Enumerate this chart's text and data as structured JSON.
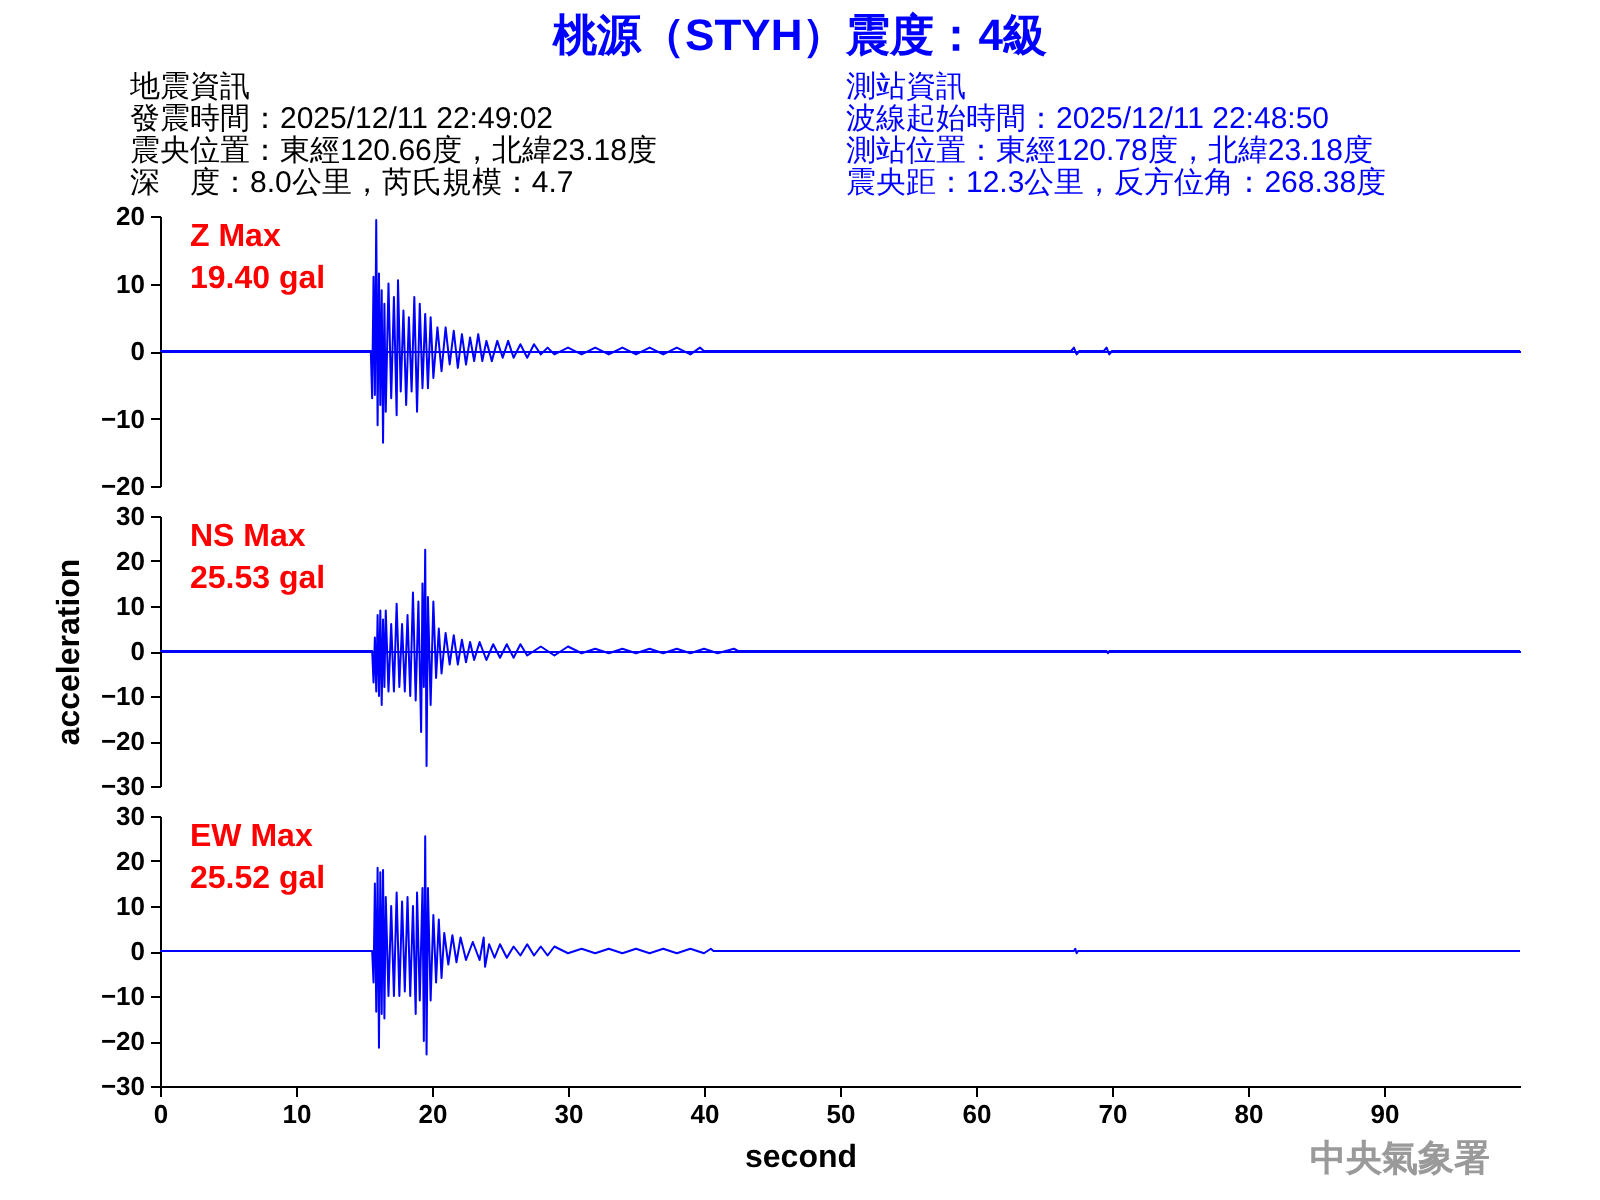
{
  "chart_data": [
    {
      "type": "other",
      "title": "桃源（STYH）震度：4級",
      "annotations": [
        "地震資訊",
        "發震時間：2025/12/11 22:49:02",
        "震央位置：東經120.66度，北緯23.18度",
        "深　度：8.0公里，芮氏規模：4.7",
        "測站資訊",
        "波線起始時間：2025/12/11 22:48:50",
        "測站位置：東經120.78度，北緯23.18度",
        "震央距：12.3公里，反方位角：268.38度"
      ]
    },
    {
      "type": "line",
      "x": [
        0,
        15.5,
        15.6,
        15.7,
        15.8,
        15.9,
        16.0,
        16.1,
        16.2,
        16.3,
        16.4,
        16.5,
        16.6,
        16.8,
        17.0,
        17.2,
        17.4,
        17.5,
        17.7,
        17.9,
        18.1,
        18.3,
        18.5,
        18.7,
        18.9,
        19.1,
        19.3,
        19.5,
        19.7,
        19.9,
        20.1,
        20.4,
        20.7,
        21.0,
        21.3,
        21.6,
        21.9,
        22.2,
        22.5,
        22.8,
        23.1,
        23.4,
        23.7,
        24.0,
        24.4,
        24.8,
        25.2,
        25.6,
        26.0,
        26.5,
        27.0,
        27.5,
        28.0,
        28.5,
        29.0,
        30.0,
        31.0,
        32.0,
        33.0,
        34.0,
        35.0,
        36.0,
        37.0,
        38.0,
        39.0,
        39.7,
        40.0,
        67.0,
        67.2,
        67.4,
        67.6,
        69.4,
        69.6,
        69.8,
        70.0,
        100
      ],
      "series": [
        {
          "color": "#0000ff",
          "values": [
            0,
            0,
            -7,
            11,
            -6.5,
            19.4,
            -11,
            11.5,
            -8,
            9,
            -13.6,
            7,
            -9,
            10,
            -7,
            8,
            -9.5,
            10.5,
            -6,
            6,
            -8,
            5,
            -6,
            8,
            -9,
            7,
            -5.5,
            5.5,
            -5.5,
            5,
            -4,
            3.5,
            -3,
            3.5,
            -2,
            3,
            -2.5,
            2.5,
            -2,
            2,
            -1.5,
            2.5,
            -1.5,
            1.5,
            -1.5,
            1.5,
            -1,
            1.5,
            -1,
            1,
            -1,
            1,
            -0.5,
            0.5,
            -0.5,
            0.5,
            -0.5,
            0.5,
            -0.5,
            0.5,
            -0.5,
            0.5,
            -0.5,
            0.5,
            -0.5,
            0.5,
            0,
            0,
            0.5,
            -0.5,
            0,
            0,
            0.5,
            -0.5,
            0,
            0
          ]
        }
      ],
      "xlim": [
        0,
        100
      ],
      "ylim": [
        -20,
        20
      ],
      "yticks": [
        -20,
        -10,
        0,
        10,
        20
      ],
      "tick_labels": "y",
      "ref_lines": [
        {
          "axis": "y",
          "value": 0,
          "color": "#0000ff"
        }
      ],
      "annotations": [
        "Z Max",
        "19.40 gal"
      ]
    },
    {
      "type": "line",
      "x": [
        0,
        15.6,
        15.7,
        15.8,
        15.9,
        16.0,
        16.1,
        16.2,
        16.3,
        16.4,
        16.5,
        16.6,
        16.8,
        17.0,
        17.2,
        17.4,
        17.6,
        17.8,
        18.0,
        18.2,
        18.4,
        18.6,
        18.8,
        19.0,
        19.2,
        19.3,
        19.4,
        19.5,
        19.6,
        19.7,
        19.9,
        20.1,
        20.3,
        20.5,
        20.7,
        21.0,
        21.3,
        21.6,
        21.9,
        22.2,
        22.5,
        22.8,
        23.1,
        23.5,
        24.0,
        24.5,
        25.0,
        25.5,
        26.0,
        26.5,
        27.0,
        28.0,
        29.0,
        30.0,
        31.0,
        32.0,
        33.0,
        34.0,
        35.0,
        36.0,
        37.0,
        38.0,
        39.0,
        40.0,
        41.0,
        42.2,
        42.5,
        69.6,
        69.7,
        69.8,
        100
      ],
      "series": [
        {
          "color": "#0000ff",
          "values": [
            0,
            0,
            -7,
            3,
            -9,
            8,
            -10,
            9,
            -12,
            7,
            -8,
            9,
            -9,
            6,
            -9,
            10.5,
            -8,
            6,
            -9,
            8,
            -10,
            13,
            -11,
            11,
            -18,
            15,
            -8,
            22.5,
            -25.53,
            12,
            -12,
            11,
            -6,
            5,
            -5,
            4,
            -3,
            3.5,
            -3,
            2.5,
            -2.5,
            2,
            -2,
            2,
            -2,
            1.5,
            -1.5,
            1.5,
            -1.5,
            1.5,
            -1,
            1,
            -1,
            1,
            -0.5,
            0.5,
            -0.5,
            0.5,
            -0.5,
            0.5,
            -0.5,
            0.5,
            -0.5,
            0.5,
            -0.5,
            0.5,
            0,
            0,
            -0.5,
            0,
            0
          ]
        }
      ],
      "xlim": [
        0,
        100
      ],
      "ylim": [
        -30,
        30
      ],
      "yticks": [
        -30,
        -20,
        -10,
        0,
        10,
        20,
        30
      ],
      "ylabel": "acceleration",
      "tick_labels": "y",
      "ref_lines": [
        {
          "axis": "y",
          "value": 0,
          "color": "#0000ff"
        }
      ],
      "annotations": [
        "NS Max",
        "25.53 gal"
      ]
    },
    {
      "type": "line",
      "x": [
        0,
        15.6,
        15.7,
        15.8,
        15.9,
        16.0,
        16.1,
        16.2,
        16.3,
        16.4,
        16.5,
        16.6,
        16.8,
        17.0,
        17.2,
        17.4,
        17.6,
        17.8,
        18.0,
        18.2,
        18.4,
        18.6,
        18.8,
        18.9,
        19.1,
        19.3,
        19.4,
        19.5,
        19.6,
        19.7,
        19.9,
        20.1,
        20.3,
        20.5,
        20.7,
        20.9,
        21.2,
        21.5,
        21.8,
        22.1,
        22.5,
        23.0,
        23.5,
        23.8,
        23.9,
        24.2,
        24.6,
        25.0,
        25.5,
        26.0,
        26.5,
        27.0,
        27.5,
        28.0,
        28.5,
        29.0,
        30.0,
        31.0,
        32.0,
        33.0,
        34.0,
        35.0,
        36.0,
        37.0,
        38.0,
        39.0,
        40.0,
        40.5,
        40.7,
        67.2,
        67.3,
        67.4,
        67.5,
        100
      ],
      "series": [
        {
          "color": "#0000ff",
          "values": [
            0,
            0,
            -7,
            15,
            -13.5,
            18.5,
            -21.5,
            17.5,
            -14,
            18,
            -15,
            12,
            -10,
            10,
            -10,
            13,
            -10,
            11,
            -9,
            12,
            -10,
            10,
            -14,
            13,
            -11,
            14,
            -20,
            25.52,
            -23,
            14,
            -11,
            8,
            -7,
            7,
            -6,
            4,
            -3,
            3.5,
            -2.5,
            3,
            -2,
            2,
            -2,
            3,
            -3.5,
            1.5,
            -1.5,
            1.5,
            -1.5,
            1,
            -1,
            1.5,
            -1,
            1,
            -1,
            1,
            -0.5,
            0.5,
            -0.5,
            0.5,
            -0.5,
            0.5,
            -0.5,
            0.5,
            -0.5,
            0.5,
            -0.5,
            0.5,
            0,
            0,
            0.5,
            -0.5,
            0,
            0
          ]
        }
      ],
      "xlim": [
        0,
        100
      ],
      "xticks": [
        0,
        10,
        20,
        30,
        40,
        50,
        60,
        70,
        80,
        90
      ],
      "xlabel": "second",
      "ylim": [
        -30,
        30
      ],
      "yticks": [
        -30,
        -20,
        -10,
        0,
        10,
        20,
        30
      ],
      "annotations": [
        "EW Max",
        "25.52 gal"
      ]
    },
    {
      "type": "other",
      "annotations": [
        "中央氣象署"
      ]
    }
  ]
}
